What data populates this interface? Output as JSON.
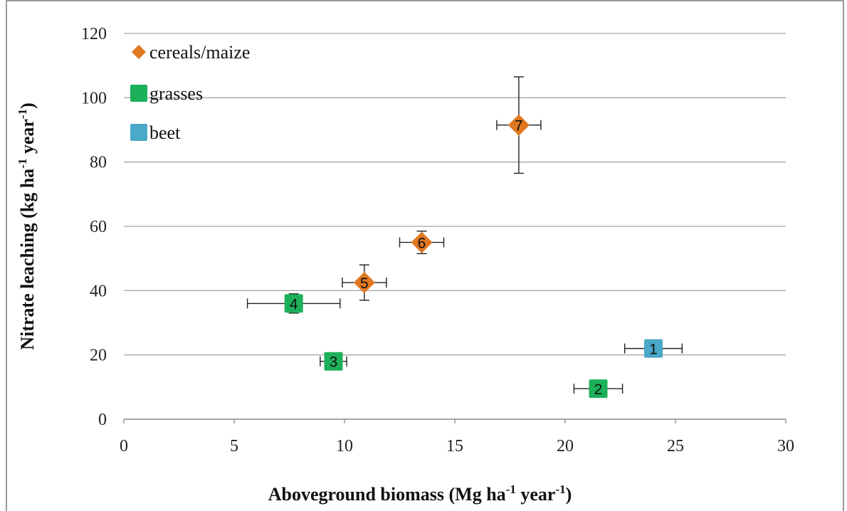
{
  "chart_data": {
    "type": "scatter",
    "xlabel": "Aboveground biomass (Mg ha",
    "xlabel_sup1": "-1",
    "xlabel_mid": " year",
    "xlabel_sup2": "-1",
    "xlabel_end": ")",
    "ylabel": "Nitrate leaching (kg ha",
    "ylabel_sup1": "-1",
    "ylabel_mid": " year",
    "ylabel_sup2": "-1",
    "ylabel_end": ")",
    "xlim": [
      0,
      30
    ],
    "ylim": [
      0,
      120
    ],
    "xticks": [
      0,
      5,
      10,
      15,
      20,
      25,
      30
    ],
    "yticks": [
      0,
      20,
      40,
      60,
      80,
      100,
      120
    ],
    "grid": "horizontal",
    "legend_position": "top-left",
    "series": [
      {
        "name": "cereals/maize",
        "marker": "diamond",
        "color": "#e07820",
        "points": [
          {
            "label": "5",
            "x": 10.9,
            "y": 42.5,
            "xerr": 1.0,
            "yerr": 5.5
          },
          {
            "label": "6",
            "x": 13.5,
            "y": 55.0,
            "xerr": 1.0,
            "yerr": 3.5
          },
          {
            "label": "7",
            "x": 17.9,
            "y": 91.5,
            "xerr": 1.0,
            "yerr": 15.0
          }
        ]
      },
      {
        "name": "grasses",
        "marker": "square",
        "color": "#1db05a",
        "points": [
          {
            "label": "2",
            "x": 21.5,
            "y": 9.5,
            "xerr": 1.1,
            "yerr": 0
          },
          {
            "label": "3",
            "x": 9.5,
            "y": 18.0,
            "xerr": 0.6,
            "yerr": 0
          },
          {
            "label": "4",
            "x": 7.7,
            "y": 36.0,
            "xerr": 2.1,
            "yerr": 3.0
          }
        ]
      },
      {
        "name": "beet",
        "marker": "square",
        "color": "#4aa8c8",
        "points": [
          {
            "label": "1",
            "x": 24.0,
            "y": 22.0,
            "xerr": 1.3,
            "yerr": 0
          }
        ]
      }
    ]
  }
}
